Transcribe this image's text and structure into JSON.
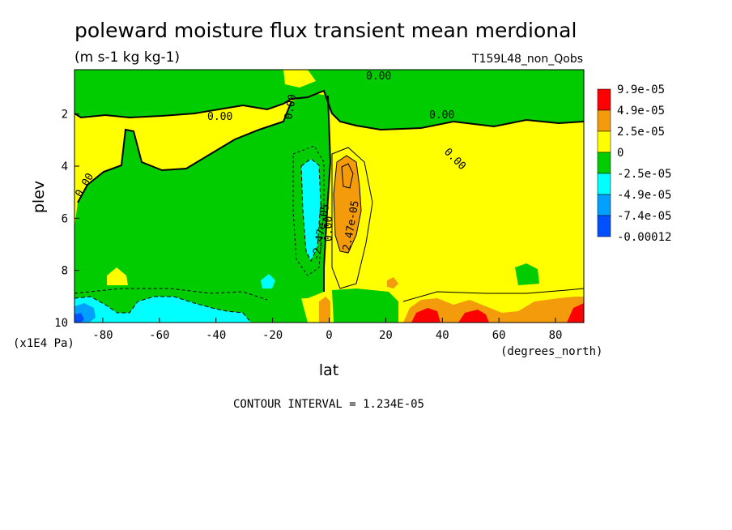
{
  "chart_data": {
    "type": "heatmap",
    "title": "poleward moisture flux transient mean merdional",
    "subtitle": "(m s-1 kg kg-1)",
    "run_label": "T159L48_non_Qobs",
    "xlabel": "lat",
    "x_units": "(degrees_north)",
    "ylabel": "plev",
    "y_units": "(x1E4 Pa)",
    "xlim": [
      -90,
      90
    ],
    "ylim": [
      10,
      0.3
    ],
    "x_ticks": [
      {
        "value": -80,
        "label": "-80"
      },
      {
        "value": -60,
        "label": "-60"
      },
      {
        "value": -40,
        "label": "-40"
      },
      {
        "value": -20,
        "label": "-20"
      },
      {
        "value": 0,
        "label": "0"
      },
      {
        "value": 20,
        "label": "20"
      },
      {
        "value": 40,
        "label": "40"
      },
      {
        "value": 60,
        "label": "60"
      },
      {
        "value": 80,
        "label": "80"
      }
    ],
    "y_ticks": [
      {
        "value": 2,
        "label": "2"
      },
      {
        "value": 4,
        "label": "4"
      },
      {
        "value": 6,
        "label": "6"
      },
      {
        "value": 8,
        "label": "8"
      },
      {
        "value": 10,
        "label": "10"
      }
    ],
    "contour_interval_label": "CONTOUR INTERVAL = 1.234E-05",
    "colorbar": [
      {
        "label": "9.9e-05",
        "color": "#ff0000"
      },
      {
        "label": "4.9e-05",
        "color": "#f39b0b"
      },
      {
        "label": "2.5e-05",
        "color": "#ffff00"
      },
      {
        "label": "0",
        "color": "#00cc00"
      },
      {
        "label": "-2.5e-05",
        "color": "#00ffff"
      },
      {
        "label": "-4.9e-05",
        "color": "#00a0ff"
      },
      {
        "label": "-7.4e-05",
        "color": "#0050ff"
      },
      {
        "label": "-0.00012",
        "color": null
      }
    ],
    "contour_labels": [
      {
        "text": "0.00",
        "lat": -28,
        "plev": 1.9
      },
      {
        "text": "0.00",
        "lat": -14,
        "plev": 1.6
      },
      {
        "text": "0.00",
        "lat": 52,
        "plev": 1.5
      },
      {
        "text": "0.00",
        "lat": 19,
        "plev": 0.4
      },
      {
        "text": "0.00",
        "lat": 43,
        "plev": 3.6
      },
      {
        "text": "0.00",
        "lat": -82,
        "plev": 4.7
      },
      {
        "text": "0.00",
        "lat": 1,
        "plev": 6.3
      },
      {
        "text": "-2.47e-05",
        "lat": -5,
        "plev": 6.0
      },
      {
        "text": "2.47e-05",
        "lat": 8,
        "plev": 6.2
      }
    ],
    "regions": [
      {
        "name": "upper-green-band",
        "sign": "negative",
        "class": "0 to -2.5e-05"
      },
      {
        "name": "southern-hemisphere-green",
        "sign": "negative",
        "class": "0 to -2.5e-05"
      },
      {
        "name": "equatorial-cyan-column",
        "sign": "negative",
        "lat": -6,
        "plev": [
          3.7,
          7.8
        ]
      },
      {
        "name": "tropical-orange-column",
        "sign": "positive",
        "lat": 6,
        "plev": [
          3.6,
          7.2
        ]
      },
      {
        "name": "low-level-cyan-south",
        "sign": "negative",
        "lat": [
          -90,
          -30
        ],
        "plev": [
          8.8,
          10
        ]
      },
      {
        "name": "low-level-orange-north",
        "sign": "positive",
        "lat": [
          28,
          90
        ],
        "plev": [
          9.0,
          10
        ]
      }
    ],
    "grid": false,
    "legend_position": "right"
  }
}
